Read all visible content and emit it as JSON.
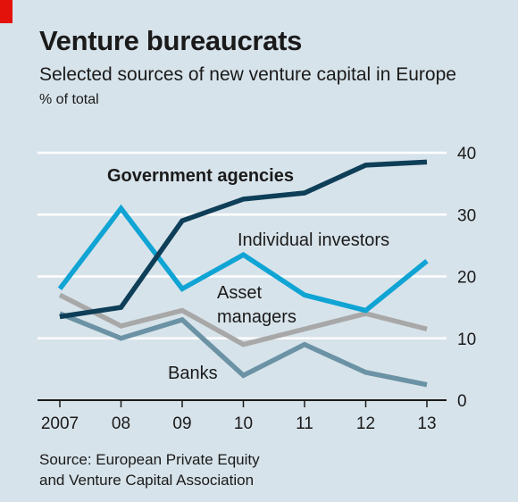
{
  "header": {
    "title": "Venture bureaucrats",
    "subtitle": "Selected sources of new venture capital in Europe",
    "unit": "% of total"
  },
  "source": {
    "line1": "Source: European Private Equity",
    "line2": "and Venture Capital Association"
  },
  "colors": {
    "background": "#d7e3ea",
    "accent": "#e3120b",
    "government": "#0e3e58",
    "individual": "#10a4d4",
    "asset": "#a8a8a8",
    "banks": "#6b92a5"
  },
  "chart_data": {
    "type": "line",
    "categories": [
      "2007",
      "08",
      "09",
      "10",
      "11",
      "12",
      "13"
    ],
    "ylim": [
      0,
      40
    ],
    "yticks": [
      0,
      10,
      20,
      30,
      40
    ],
    "grid": true,
    "series": [
      {
        "name": "Government agencies",
        "values": [
          13.5,
          15,
          29,
          32.5,
          33.5,
          38,
          38.5
        ],
        "color": "#0e3e58"
      },
      {
        "name": "Individual investors",
        "values": [
          18,
          31,
          18,
          23.5,
          17,
          14.5,
          22.5
        ],
        "color": "#10a4d4"
      },
      {
        "name": "Asset managers",
        "values": [
          17,
          12,
          14.5,
          9,
          11.5,
          14,
          11.5
        ],
        "color": "#a8a8a8"
      },
      {
        "name": "Banks",
        "values": [
          14,
          10,
          13,
          4,
          9,
          4.5,
          2.5
        ],
        "color": "#6b92a5"
      }
    ]
  }
}
